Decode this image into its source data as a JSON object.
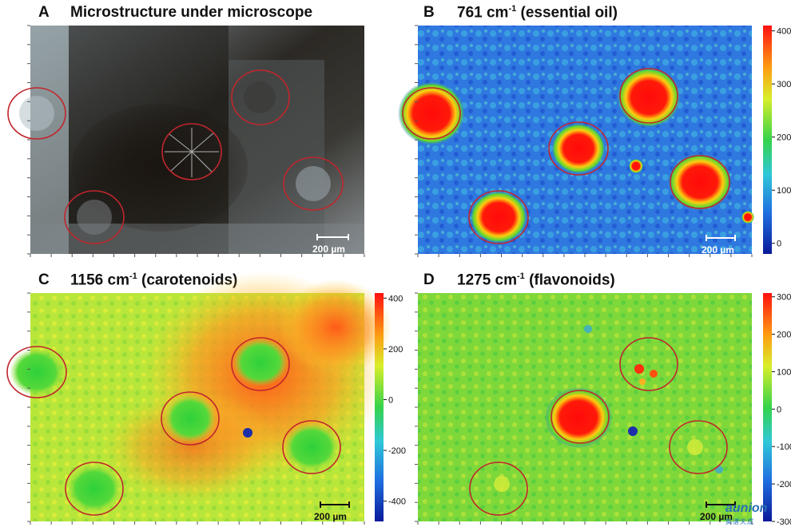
{
  "panels": [
    {
      "id": "A",
      "title": "Microstructure under microscope",
      "wavenumber": "",
      "unit_sup": "",
      "compound": "",
      "scale_bar": "200 µm",
      "colorbar": null
    },
    {
      "id": "B",
      "title": "",
      "wavenumber": "761 cm",
      "unit_sup": "-1",
      "compound": " (essential oil)",
      "scale_bar": "200 µm",
      "colorbar": {
        "ticks": [
          "400",
          "300",
          "200",
          "100",
          "0"
        ],
        "min": -20,
        "max": 410
      }
    },
    {
      "id": "C",
      "title": "",
      "wavenumber": "1156 cm",
      "unit_sup": "-1",
      "compound": " (carotenoids)",
      "scale_bar": "200 µm",
      "colorbar": {
        "ticks": [
          "400",
          "200",
          "0",
          "-200",
          "-400"
        ],
        "min": -480,
        "max": 420
      }
    },
    {
      "id": "D",
      "title": "",
      "wavenumber": "1275 cm",
      "unit_sup": "-1",
      "compound": " (flavonoids)",
      "scale_bar": "200 µm",
      "colorbar": {
        "ticks": [
          "300",
          "200",
          "100",
          "0",
          "-100",
          "-200",
          "-300"
        ],
        "min": -300,
        "max": 310
      }
    }
  ],
  "watermark": {
    "brand": "aunion",
    "sub": "奥谱天成"
  },
  "colors": {
    "circle": "#c0262d",
    "low": "#1a2aa8",
    "mid": "#2fd43a",
    "high": "#ff1a0a"
  }
}
